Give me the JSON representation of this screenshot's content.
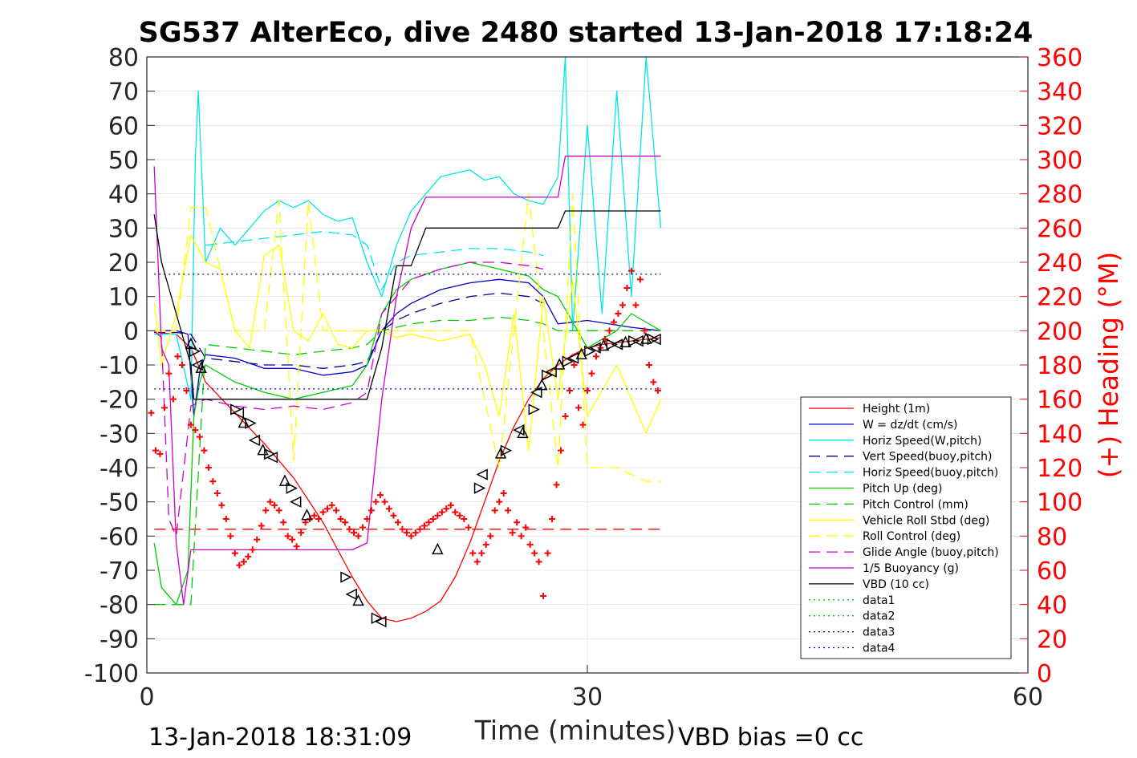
{
  "chart_data": {
    "type": "line",
    "title": "SG537 AlterEco, dive 2480 started 13-Jan-2018 17:18:24",
    "xlabel": "Time (minutes)",
    "ylabel": "",
    "ylabel_right": "(+) Heading (°M)",
    "xlim": [
      0,
      60
    ],
    "ylim": [
      -100,
      80
    ],
    "ylim_right": [
      0,
      360
    ],
    "x_ticks": [
      "0",
      "30",
      "60"
    ],
    "y_ticks": [
      "80",
      "70",
      "60",
      "50",
      "40",
      "30",
      "20",
      "10",
      "0",
      "-10",
      "-20",
      "-30",
      "-40",
      "-50",
      "-60",
      "-70",
      "-80",
      "-90",
      "-100"
    ],
    "y_ticks_right": [
      "360",
      "340",
      "320",
      "300",
      "280",
      "260",
      "240",
      "220",
      "200",
      "180",
      "160",
      "140",
      "120",
      "100",
      "80",
      "60",
      "40",
      "20",
      "0"
    ],
    "grid": true,
    "legend_position": "lower-right",
    "footer_left": "13-Jan-2018 18:31:09",
    "footer_right": "VBD bias =0 cc",
    "series": [
      {
        "name": "Height (1m)",
        "color": "#ff0000",
        "style": "solid",
        "x": [
          0.5,
          2,
          3,
          4,
          6,
          8,
          10,
          12,
          14,
          15,
          16,
          17,
          18,
          19,
          20,
          21,
          22,
          23,
          24,
          25,
          26,
          27,
          28,
          29,
          30,
          31,
          32,
          33,
          34,
          35
        ],
        "y": [
          -0.5,
          -1,
          -5,
          -15,
          -24,
          -33,
          -43,
          -56,
          -72,
          -79,
          -84,
          -85,
          -84,
          -82,
          -79,
          -72,
          -62,
          -50,
          -38,
          -28,
          -20,
          -14,
          -10,
          -7,
          -5,
          -4,
          -3.5,
          -3,
          -2.5,
          -2
        ]
      },
      {
        "name": "W = dz/dt (cm/s)",
        "color": "#0000cc",
        "style": "solid",
        "x": [
          0.5,
          2,
          2.8,
          3.2,
          3.6,
          4,
          6,
          8,
          10,
          12,
          14,
          15,
          16,
          17,
          18,
          20,
          22,
          24,
          26,
          27,
          28,
          30,
          33,
          35
        ],
        "y": [
          0,
          0,
          -1,
          -25,
          -12,
          -7,
          -8,
          -11,
          -11,
          -13,
          -12,
          -10,
          0,
          5,
          8,
          12,
          14,
          15,
          14,
          10,
          2,
          3,
          1,
          0
        ]
      },
      {
        "name": "Horiz Speed(W,pitch)",
        "color": "#00e5e5",
        "style": "solid",
        "x": [
          0.5,
          2,
          3,
          3.3,
          3.5,
          4,
          5,
          6,
          7,
          8,
          9,
          10,
          11,
          12,
          13,
          14,
          15,
          16,
          17,
          18,
          19,
          20,
          22,
          23,
          24,
          25,
          26,
          27,
          28,
          28.5,
          29,
          30,
          31,
          32,
          33,
          34,
          35
        ],
        "y": [
          -1,
          -1,
          -20,
          50,
          70,
          20,
          30,
          25,
          30,
          35,
          38,
          36,
          38,
          34,
          32,
          33,
          20,
          10,
          25,
          35,
          40,
          45,
          47,
          44,
          45,
          40,
          38,
          37,
          45,
          80,
          0,
          60,
          5,
          70,
          10,
          80,
          30
        ]
      },
      {
        "name": "Vert Speed(buoy,pitch)",
        "color": "#00008b",
        "style": "dashed",
        "x": [
          0.5,
          2,
          3,
          4,
          6,
          8,
          10,
          12,
          14,
          15,
          16,
          17,
          18,
          20,
          22,
          24,
          26,
          27
        ],
        "y": [
          -0.5,
          -0.5,
          -1,
          -8,
          -9,
          -10,
          -10,
          -11,
          -10,
          -9,
          0,
          3,
          5,
          8,
          10,
          11,
          10,
          8
        ]
      },
      {
        "name": "Horiz Speed(buoy,pitch)",
        "color": "#00e5e5",
        "style": "dashed",
        "x": [
          4,
          6,
          8,
          10,
          12,
          14,
          15,
          16,
          17,
          18,
          20,
          22,
          24,
          26,
          27
        ],
        "y": [
          25,
          26,
          27,
          28,
          29,
          28,
          25,
          12,
          20,
          22,
          23,
          24,
          24,
          23,
          22
        ]
      },
      {
        "name": "Pitch Up (deg)",
        "color": "#00cc00",
        "style": "solid",
        "x": [
          0.5,
          1,
          2,
          2.8,
          3.2,
          3.6,
          4,
          6,
          8,
          10,
          12,
          14,
          15,
          16,
          17,
          18,
          20,
          22,
          24,
          26,
          27,
          28,
          30,
          32,
          33,
          35
        ],
        "y": [
          -62,
          -75,
          -80,
          -70,
          -25,
          -15,
          -10,
          -15,
          -18,
          -20,
          -18,
          -16,
          -10,
          5,
          12,
          15,
          18,
          20,
          18,
          16,
          12,
          10,
          -5,
          0,
          5,
          0
        ]
      },
      {
        "name": "Pitch Control (mm)",
        "color": "#00cc00",
        "style": "dashed",
        "x": [
          0.5,
          2,
          3,
          4,
          6,
          8,
          10,
          12,
          14,
          15,
          16,
          18,
          20,
          22,
          24,
          26,
          27,
          28,
          30,
          35
        ],
        "y": [
          -80,
          -80,
          -80,
          -4,
          -5,
          -6,
          -7,
          -6,
          -5,
          -4,
          0,
          2,
          3,
          3,
          4,
          3,
          2,
          0,
          0,
          0
        ]
      },
      {
        "name": "Vehicle Roll Stbd (deg)",
        "color": "#ffff00",
        "style": "solid",
        "x": [
          0.5,
          1,
          2,
          3,
          4,
          5,
          6,
          7,
          8,
          9,
          10,
          11,
          12,
          13,
          14,
          15,
          16,
          17,
          18,
          20,
          22,
          23,
          24,
          25,
          26,
          27,
          28,
          29,
          30,
          32,
          34,
          35
        ],
        "y": [
          8,
          -10,
          5,
          28,
          20,
          18,
          0,
          -5,
          22,
          25,
          0,
          -3,
          5,
          -4,
          -5,
          0,
          0,
          -2,
          -1,
          -3,
          -1,
          -10,
          -25,
          5,
          -35,
          10,
          -20,
          15,
          -25,
          -10,
          -30,
          -20
        ]
      },
      {
        "name": "Roll Control (deg)",
        "color": "#ffff00",
        "style": "dashed",
        "x": [
          0.5,
          2,
          3,
          4,
          6,
          8,
          9,
          10,
          11,
          12,
          14,
          16,
          18,
          20,
          22,
          24,
          26,
          28,
          29,
          30,
          32,
          34,
          35
        ],
        "y": [
          0,
          0,
          36,
          36,
          0,
          0,
          38,
          -38,
          38,
          0,
          0,
          0,
          0,
          0,
          0,
          -40,
          40,
          -40,
          40,
          -40,
          -40,
          -44,
          -44
        ]
      },
      {
        "name": "Glide Angle (buoy,pitch)",
        "color": "#cc00cc",
        "style": "dashed",
        "x": [
          0.5,
          1,
          1.5,
          2,
          3,
          4,
          6,
          8,
          10,
          12,
          14,
          15,
          16,
          18,
          20,
          22,
          24,
          26,
          27
        ],
        "y": [
          0,
          -2,
          -55,
          -60,
          -22,
          -20,
          -22,
          -23,
          -22,
          -23,
          -21,
          -18,
          5,
          15,
          18,
          20,
          20,
          19,
          18
        ]
      },
      {
        "name": "1/5 Buoyancy (g)",
        "color": "#cc00cc",
        "style": "solid",
        "x": [
          0.5,
          1,
          1.5,
          2,
          2.5,
          3,
          4,
          6,
          8,
          10,
          12,
          14,
          15,
          16,
          17,
          18,
          19,
          20,
          22,
          24,
          26,
          28,
          28.5,
          30,
          35
        ],
        "y": [
          48,
          -5,
          -10,
          -62,
          -80,
          -64,
          -64,
          -64,
          -64,
          -64,
          -64,
          -64,
          -62,
          -20,
          10,
          30,
          39,
          39,
          39,
          39,
          39,
          39,
          51,
          51,
          51
        ]
      },
      {
        "name": "VBD (10 cc)",
        "color": "#000000",
        "style": "solid",
        "x": [
          0.5,
          1,
          2,
          3,
          3.2,
          4,
          6,
          8,
          10,
          12,
          14,
          15,
          16,
          17,
          18,
          19,
          20,
          22,
          24,
          26,
          28,
          28.5,
          30,
          35
        ],
        "y": [
          34,
          20,
          5,
          -10,
          -20,
          -20,
          -20,
          -20,
          -20,
          -20,
          -20,
          -20,
          -5,
          19,
          19,
          30,
          30,
          30,
          30,
          30,
          30,
          35,
          35,
          35
        ]
      },
      {
        "name": "data1",
        "color": "#00cc00",
        "style": "dotted",
        "x": [],
        "y": []
      },
      {
        "name": "data2",
        "color": "#00cc00",
        "style": "dotted",
        "x": [],
        "y": []
      },
      {
        "name": "data3",
        "color": "#00008b",
        "style": "dotted",
        "x": [
          0.5,
          35
        ],
        "y": [
          16.5,
          16.5
        ]
      },
      {
        "name": "data4",
        "color": "#0000cc",
        "style": "dotted",
        "x": [
          0.5,
          35
        ],
        "y": [
          -17,
          -17
        ]
      }
    ],
    "reference_lines": [
      {
        "color": "#ff0000",
        "style": "dashed",
        "x": [
          0.5,
          35
        ],
        "y": [
          -58,
          -58
        ]
      }
    ],
    "heading_points": {
      "axis": "right",
      "color": "#ff0000",
      "marker": "+",
      "x": [
        0.3,
        0.6,
        0.9,
        1.2,
        1.5,
        1.8,
        2.1,
        2.4,
        2.7,
        3.0,
        3.3,
        3.6,
        3.9,
        4.2,
        4.5,
        4.8,
        5.1,
        5.4,
        5.7,
        6.0,
        6.3,
        6.6,
        6.9,
        7.2,
        7.5,
        7.8,
        8.1,
        8.4,
        8.7,
        9.0,
        9.3,
        9.6,
        9.9,
        10.2,
        10.5,
        10.8,
        11.1,
        11.4,
        11.7,
        12.0,
        12.3,
        12.6,
        12.9,
        13.2,
        13.5,
        13.8,
        14.1,
        14.4,
        14.7,
        15.0,
        15.3,
        15.6,
        15.9,
        16.2,
        16.5,
        16.8,
        17.1,
        17.4,
        17.7,
        18.0,
        18.3,
        18.6,
        18.9,
        19.2,
        19.5,
        19.8,
        20.1,
        20.4,
        20.7,
        21.0,
        21.3,
        21.6,
        21.9,
        22.2,
        22.5,
        22.8,
        23.1,
        23.4,
        23.7,
        24.0,
        24.3,
        24.6,
        24.9,
        25.2,
        25.5,
        25.8,
        26.1,
        26.4,
        26.7,
        27.0,
        27.3,
        27.6,
        27.9,
        28.2,
        28.5,
        28.8,
        29.1,
        29.4,
        29.7,
        30.0,
        30.3,
        30.6,
        30.9,
        31.2,
        31.5,
        31.8,
        32.1,
        32.4,
        32.7,
        33.0,
        33.3,
        33.6,
        33.9,
        34.2,
        34.5,
        34.8
      ],
      "y": [
        152,
        130,
        128,
        155,
        175,
        160,
        185,
        180,
        165,
        145,
        142,
        138,
        130,
        120,
        112,
        105,
        98,
        90,
        80,
        70,
        63,
        65,
        68,
        72,
        78,
        86,
        95,
        100,
        98,
        95,
        88,
        80,
        78,
        74,
        82,
        88,
        90,
        92,
        90,
        94,
        96,
        98,
        95,
        90,
        88,
        84,
        82,
        80,
        85,
        90,
        95,
        100,
        104,
        100,
        96,
        92,
        88,
        84,
        82,
        80,
        82,
        84,
        86,
        88,
        90,
        92,
        94,
        96,
        98,
        94,
        92,
        90,
        85,
        70,
        65,
        70,
        75,
        80,
        95,
        100,
        105,
        95,
        82,
        88,
        80,
        85,
        75,
        70,
        65,
        45,
        70,
        90,
        110,
        130,
        150,
        165,
        180,
        155,
        145,
        165,
        175,
        185,
        190,
        195,
        200,
        205,
        210,
        215,
        225,
        235,
        215,
        230,
        200,
        180,
        170,
        165
      ]
    },
    "depth_markers": {
      "axis": "left",
      "color": "#000000",
      "x": [
        3.0,
        3.2,
        3.5,
        3.7,
        6.0,
        6.3,
        6.6,
        7.0,
        7.4,
        7.9,
        8.3,
        8.6,
        9.4,
        9.8,
        10.2,
        10.9,
        13.5,
        14.0,
        14.4,
        15.6,
        16.0,
        19.8,
        22.6,
        22.9,
        24.1,
        24.4,
        25.4,
        25.6,
        26.3,
        26.6,
        26.9,
        27.2,
        27.6,
        28.1,
        28.6,
        29.1,
        29.6,
        30.1,
        30.6,
        31.1,
        31.6,
        32.1,
        32.6,
        33.1,
        33.5,
        34.0,
        34.4,
        34.7
      ],
      "y": [
        -4,
        -6,
        -10,
        -11,
        -23,
        -24,
        -27,
        -27,
        -32,
        -35,
        -36,
        -37,
        -44,
        -46,
        -50,
        -54,
        -72,
        -77,
        -79,
        -84,
        -85,
        -64,
        -46,
        -42,
        -36,
        -35,
        -29,
        -30,
        -23,
        -18,
        -16,
        -13,
        -12,
        -10,
        -9,
        -8,
        -7,
        -6,
        -5,
        -4.5,
        -4,
        -4,
        -3.5,
        -3,
        -3,
        -2.5,
        -2.5,
        -2.5
      ]
    }
  }
}
